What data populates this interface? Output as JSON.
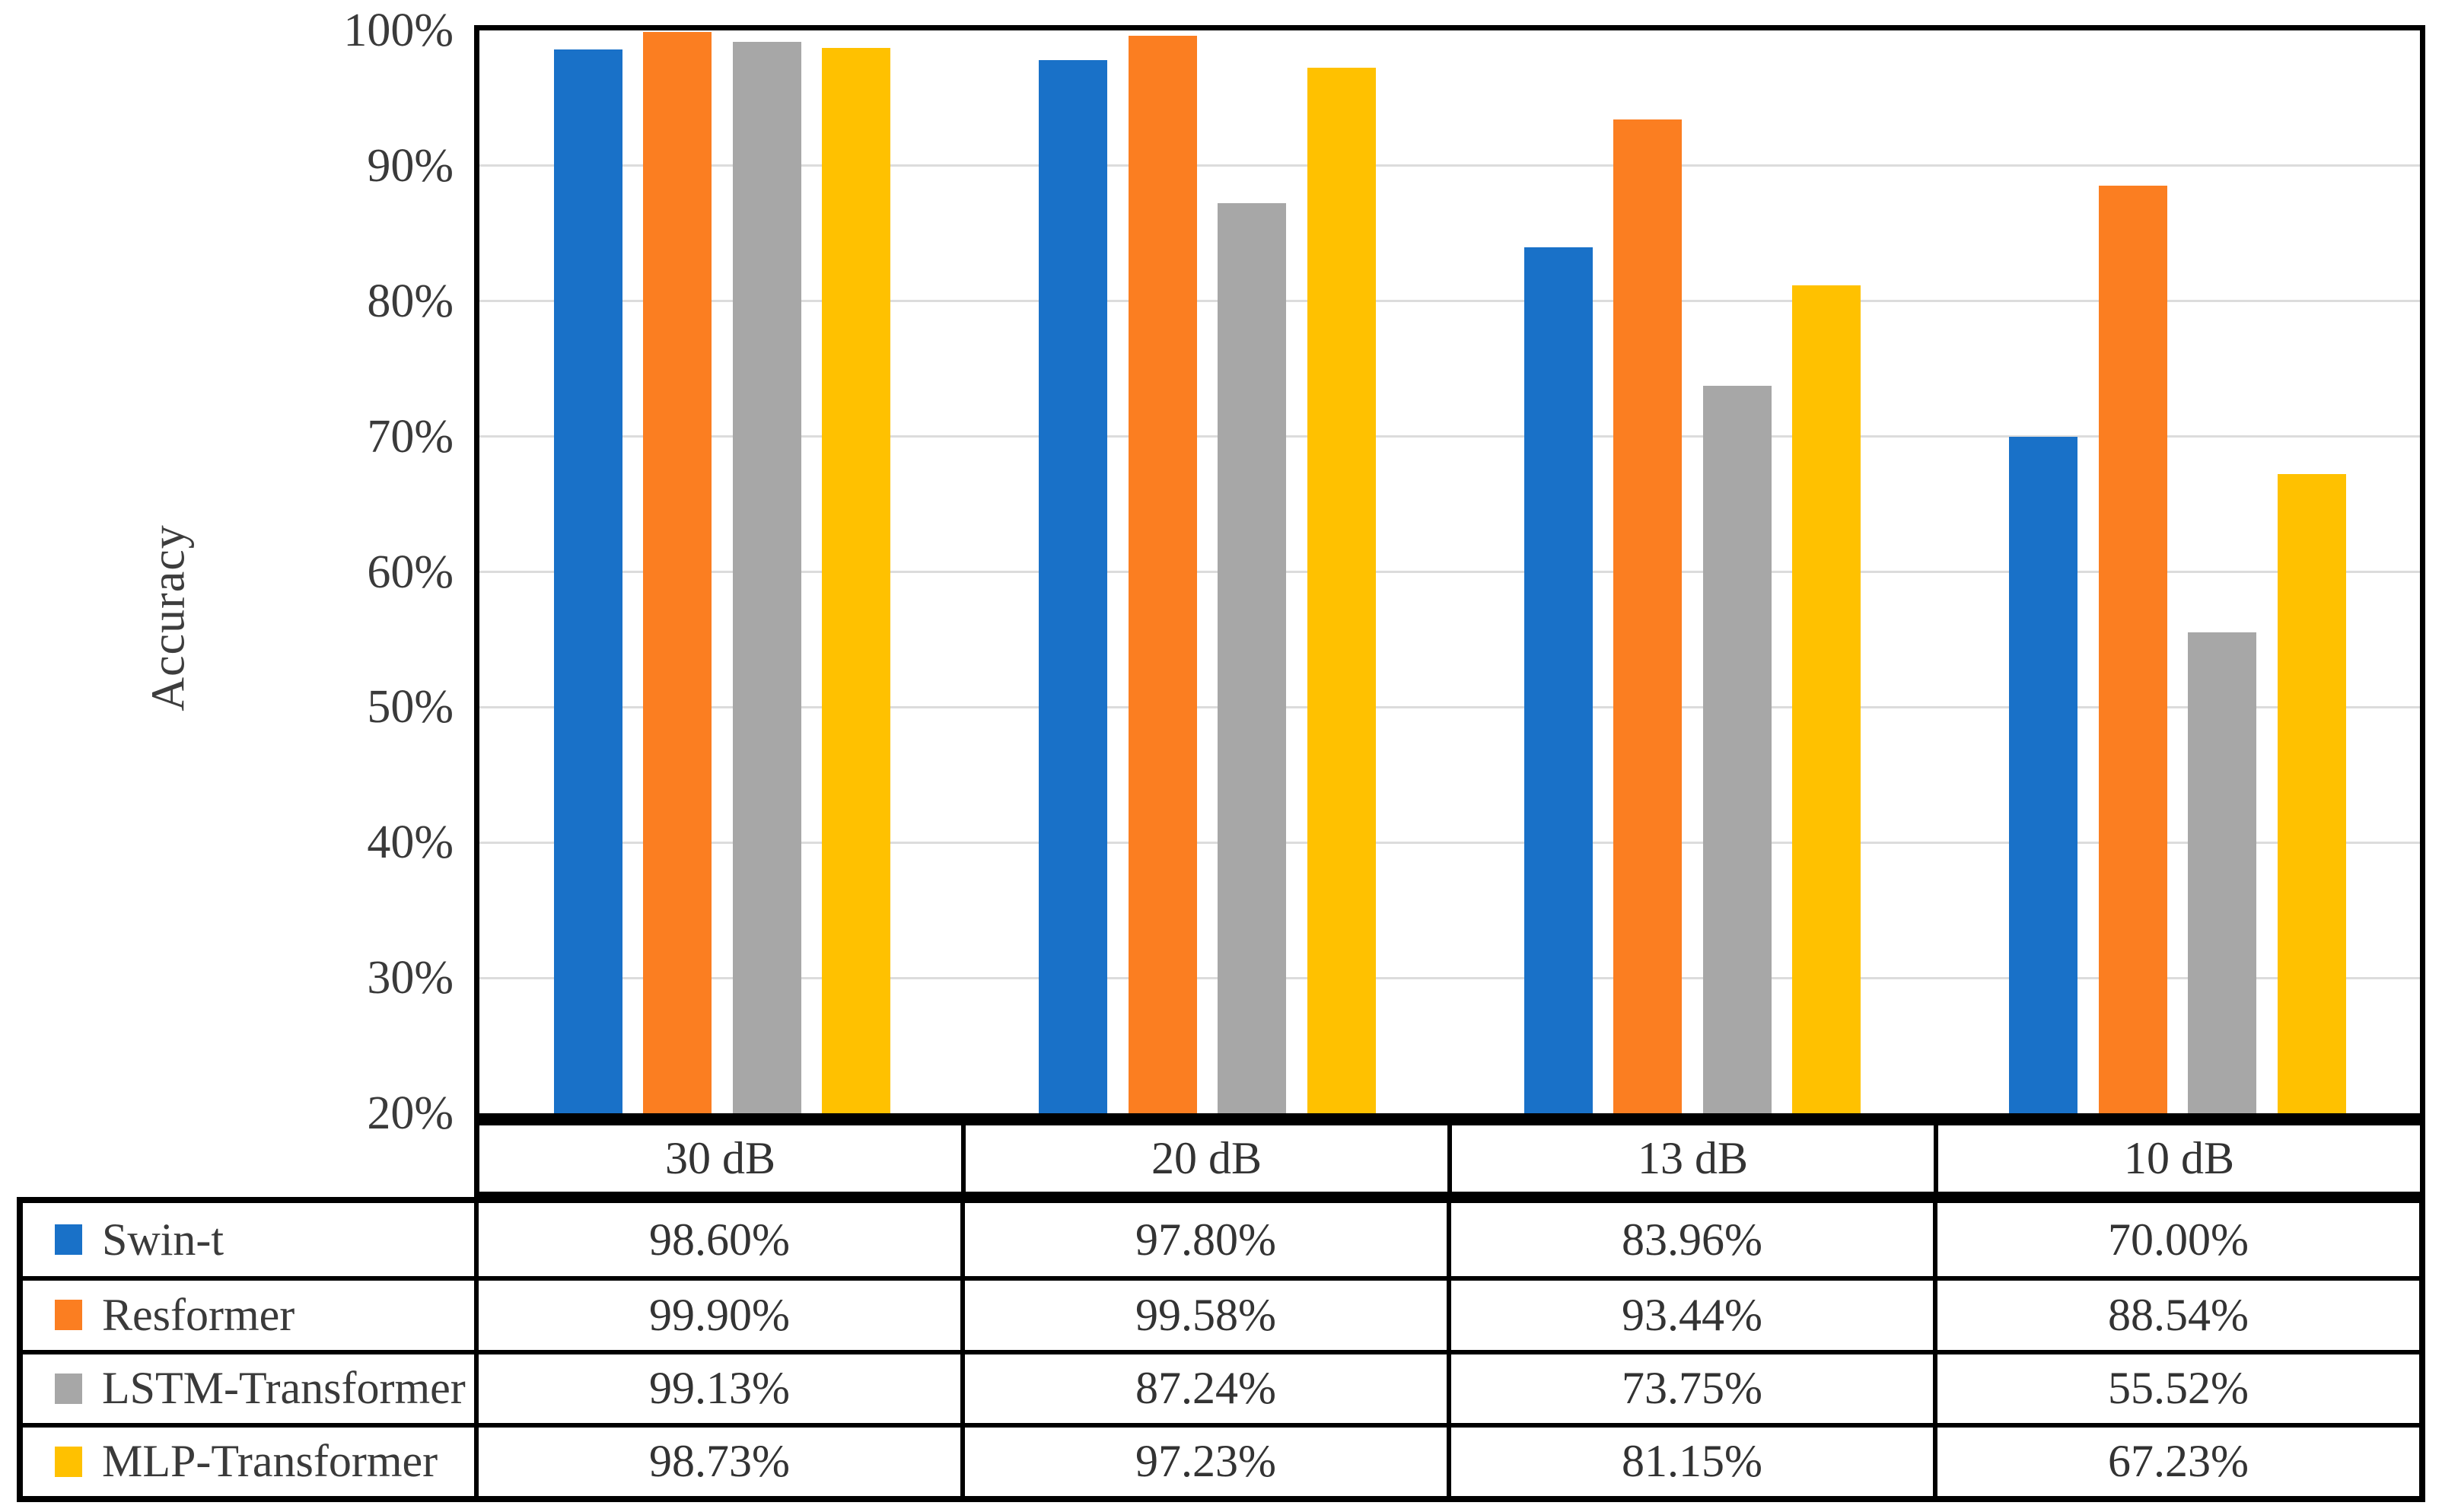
{
  "figure": {
    "kind": "grouped bar chart with attached data table",
    "background": "#ffffff",
    "text_color": "#333333",
    "border_color": "#000000",
    "gridline_color": "#dcdcdc"
  },
  "chart_data": {
    "type": "bar",
    "title": "",
    "xlabel": "",
    "ylabel": "Accuracy",
    "categories": [
      "30 dB",
      "20 dB",
      "13 dB",
      "10 dB"
    ],
    "series": [
      {
        "name": "Swin-t",
        "color": "#1971C8",
        "values": [
          98.6,
          97.8,
          83.96,
          70.0
        ],
        "display": [
          "98.60%",
          "97.80%",
          "83.96%",
          "70.00%"
        ]
      },
      {
        "name": "Resformer",
        "color": "#FB7E21",
        "values": [
          99.9,
          99.58,
          93.44,
          88.54
        ],
        "display": [
          "99.90%",
          "99.58%",
          "93.44%",
          "88.54%"
        ]
      },
      {
        "name": "LSTM-Transformer",
        "color": "#A7A7A7",
        "values": [
          99.13,
          87.24,
          73.75,
          55.52
        ],
        "display": [
          "99.13%",
          "87.24%",
          "73.75%",
          "55.52%"
        ]
      },
      {
        "name": "MLP-Transformer",
        "color": "#FFC100",
        "values": [
          98.73,
          97.23,
          81.15,
          67.23
        ],
        "display": [
          "98.73%",
          "97.23%",
          "81.15%",
          "67.23%"
        ]
      }
    ],
    "ylim": [
      20,
      100
    ],
    "y_ticks": [
      {
        "value": 100,
        "label": "100%"
      },
      {
        "value": 90,
        "label": "90%"
      },
      {
        "value": 80,
        "label": "80%"
      },
      {
        "value": 70,
        "label": "70%"
      },
      {
        "value": 60,
        "label": "60%"
      },
      {
        "value": 50,
        "label": "50%"
      },
      {
        "value": 40,
        "label": "40%"
      },
      {
        "value": 30,
        "label": "30%"
      },
      {
        "value": 20,
        "label": "20%"
      }
    ],
    "gridlines": [
      30,
      40,
      50,
      60,
      70,
      80,
      90
    ],
    "grid": "horizontal",
    "legend_position": "left column of data table"
  }
}
